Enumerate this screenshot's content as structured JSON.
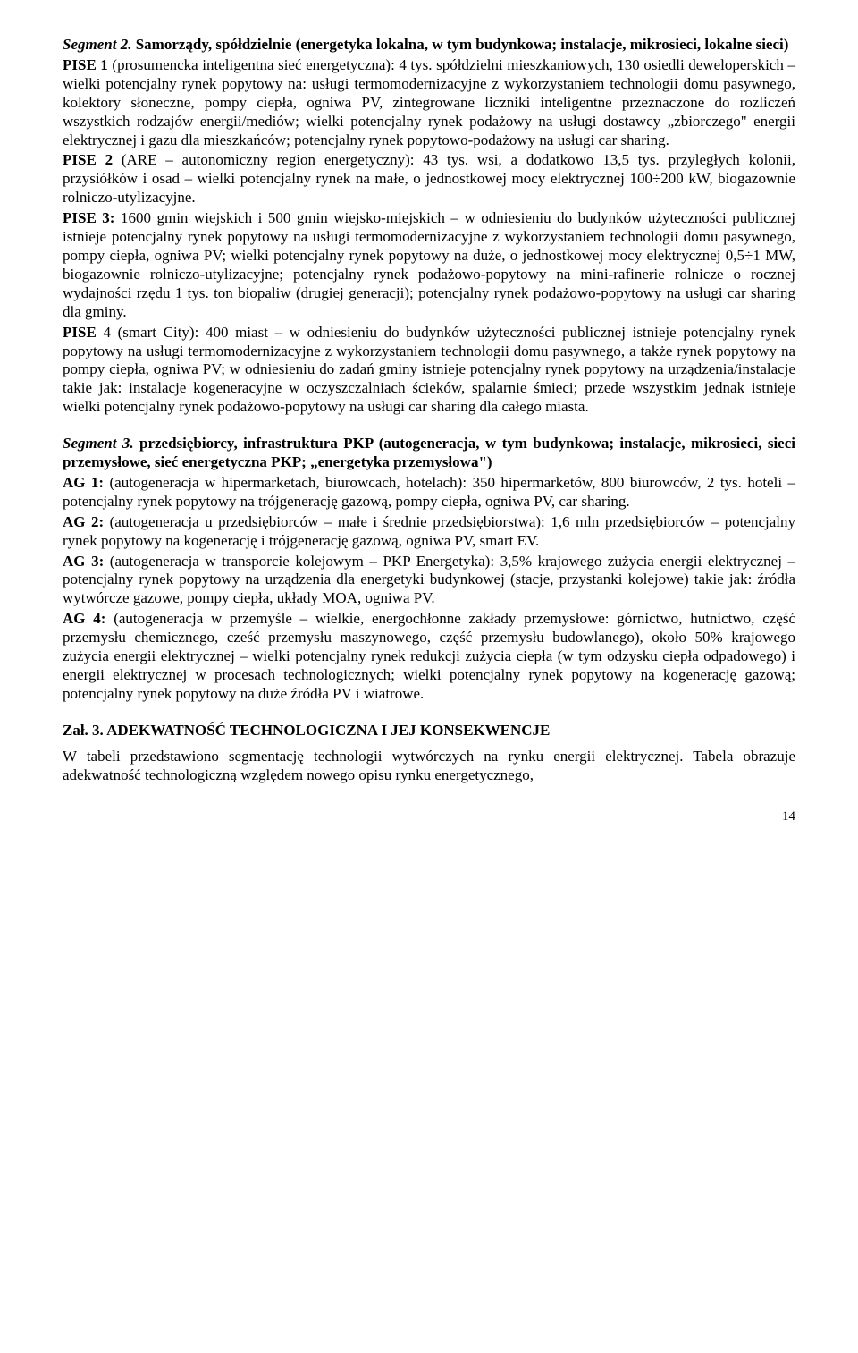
{
  "seg2": {
    "heading_prefix": "Segment 2.",
    "heading_rest": " Samorządy, spółdzielnie (energetyka lokalna, w tym budynkowa; instalacje, mikrosieci, lokalne sieci)",
    "pise1_lead": "PISE 1",
    "pise1_body": " (prosumencka inteligentna sieć energetyczna): 4 tys. spółdzielni mieszkaniowych, 130 osiedli deweloperskich – wielki potencjalny rynek popytowy na: usługi termomodernizacyjne z wykorzystaniem technologii domu pasywnego, kolektory słoneczne, pompy ciepła, ogniwa PV, zintegrowane liczniki inteligentne przeznaczone do rozliczeń wszystkich rodzajów energii/mediów; wielki potencjalny rynek podażowy na usługi dostawcy „zbiorczego\" energii elektrycznej i gazu dla mieszkańców; potencjalny rynek popytowo-podażowy na usługi car sharing.",
    "pise2_lead": "PISE 2",
    "pise2_body": " (ARE – autonomiczny region energetyczny): 43 tys. wsi, a dodatkowo 13,5 tys. przyległych kolonii, przysiółków i osad – wielki potencjalny rynek na małe, o jednostkowej mocy elektrycznej 100÷200 kW, biogazownie rolniczo-utylizacyjne.",
    "pise3_lead": "PISE 3:",
    "pise3_body": " 1600 gmin wiejskich i 500 gmin wiejsko-miejskich – w odniesieniu do budynków użyteczności publicznej istnieje potencjalny rynek popytowy na usługi termomodernizacyjne z wykorzystaniem technologii domu pasywnego, pompy ciepła, ogniwa PV; wielki potencjalny rynek popytowy na duże, o jednostkowej mocy elektrycznej 0,5÷1 MW, biogazownie rolniczo-utylizacyjne; potencjalny rynek podażowo-popytowy na mini-rafinerie rolnicze o rocznej wydajności rzędu 1 tys. ton biopaliw (drugiej generacji); potencjalny rynek podażowo-popytowy na usługi car sharing dla gminy.",
    "pise4_lead": "PISE",
    "pise4_body": " 4 (smart City): 400 miast – w odniesieniu do budynków użyteczności publicznej istnieje potencjalny rynek popytowy na usługi termomodernizacyjne z wykorzystaniem technologii domu pasywnego, a także rynek popytowy na pompy ciepła, ogniwa PV; w odniesieniu do zadań gminy istnieje potencjalny rynek popytowy na urządzenia/instalacje takie jak: instalacje kogeneracyjne w oczyszczalniach ścieków, spalarnie śmieci; przede wszystkim jednak istnieje wielki potencjalny rynek podażowo-popytowy na usługi car sharing dla całego miasta."
  },
  "seg3": {
    "heading_prefix": "Segment 3.",
    "heading_rest": " przedsiębiorcy, infrastruktura PKP (autogeneracja, w tym budynkowa; instalacje, mikrosieci, sieci przemysłowe, sieć energetyczna PKP; „energetyka przemysłowa\")",
    "ag1_lead": "AG 1:",
    "ag1_body": " (autogeneracja w hipermarketach, biurowcach, hotelach): 350 hipermarketów, 800 biurowców, 2 tys. hoteli – potencjalny rynek popytowy na trójgenerację gazową, pompy ciepła, ogniwa PV, car sharing.",
    "ag2_lead": "AG 2:",
    "ag2_body": " (autogeneracja u przedsiębiorców – małe i średnie przedsiębiorstwa): 1,6 mln przedsiębiorców – potencjalny rynek popytowy na kogenerację i trójgenerację gazową, ogniwa PV, smart EV.",
    "ag3_lead": "AG 3:",
    "ag3_body": " (autogeneracja w transporcie kolejowym – PKP Energetyka): 3,5% krajowego zużycia energii elektrycznej – potencjalny rynek popytowy na urządzenia dla energetyki budynkowej (stacje, przystanki kolejowe) takie jak: źródła wytwórcze gazowe, pompy ciepła, układy MOA, ogniwa PV.",
    "ag4_lead": "AG 4:",
    "ag4_body": " (autogeneracja w przemyśle – wielkie, energochłonne  zakłady przemysłowe: górnictwo, hutnictwo, część przemysłu chemicznego, cześć przemysłu maszynowego, część przemysłu budowlanego), około 50% krajowego zużycia energii elektrycznej – wielki potencjalny rynek redukcji zużycia ciepła (w tym odzysku ciepła odpadowego) i energii elektrycznej w procesach technologicznych; wielki potencjalny rynek popytowy na kogenerację gazową; potencjalny rynek popytowy na duże źródła PV i wiatrowe."
  },
  "zal3": {
    "title": "Zał. 3. ADEKWATNOŚĆ TECHNOLOGICZNA I JEJ KONSEKWENCJE",
    "body": "W tabeli przedstawiono segmentację technologii wytwórczych na rynku energii elektrycznej. Tabela obrazuje adekwatność technologiczną względem nowego opisu rynku energetycznego,"
  },
  "page_number": "14"
}
